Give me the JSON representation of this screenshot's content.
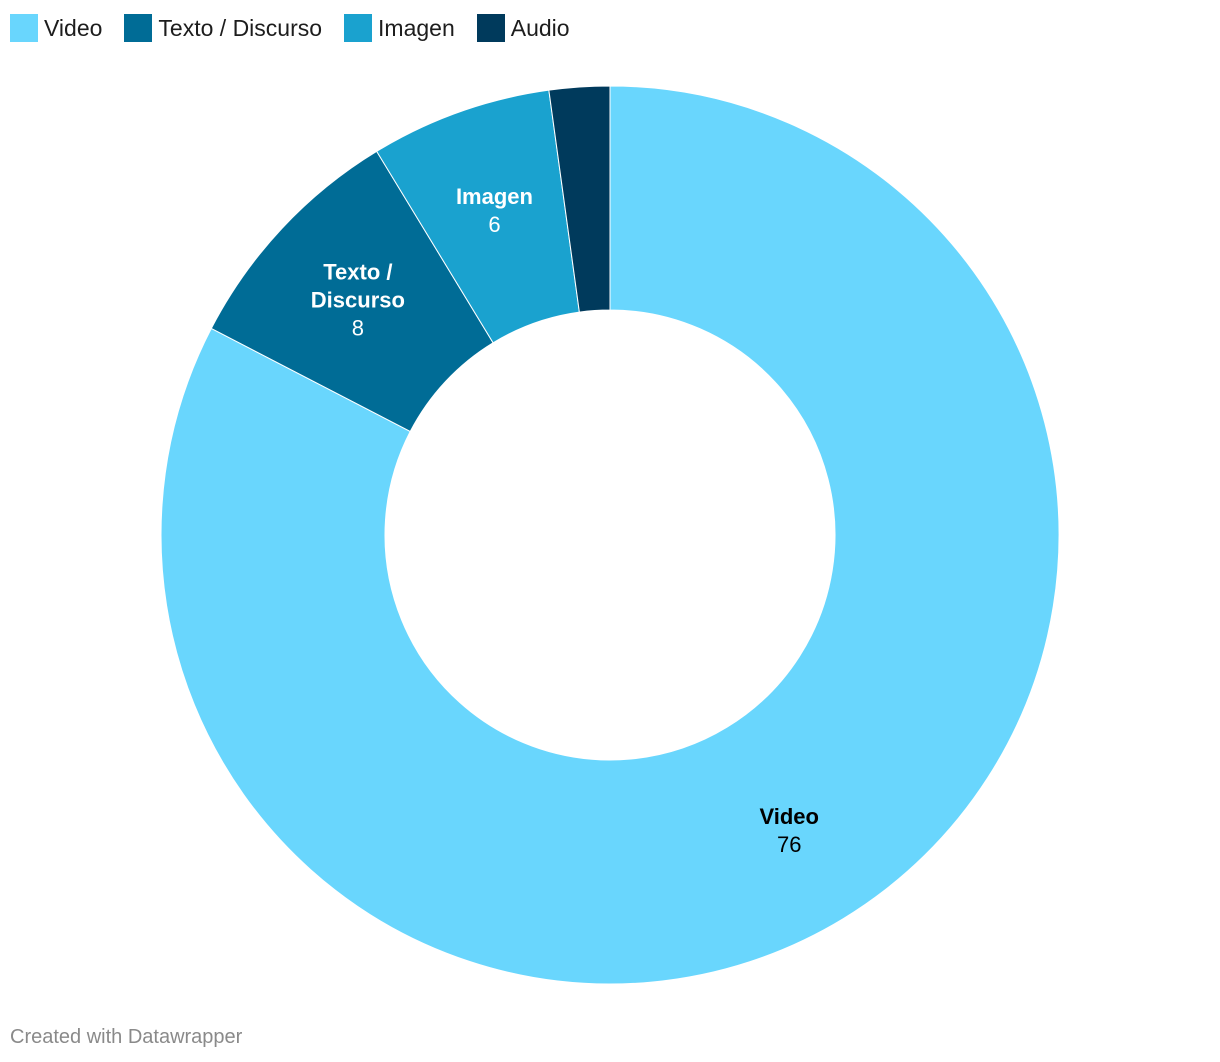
{
  "chart_data": {
    "type": "pie",
    "variant": "donut",
    "categories": [
      "Video",
      "Texto / Discurso",
      "Imagen",
      "Audio"
    ],
    "values": [
      76,
      8,
      6,
      2
    ],
    "colors": [
      "#69d6fd",
      "#006c96",
      "#1aa2cf",
      "#003a5c"
    ],
    "label_colors": [
      "#000000",
      "#ffffff",
      "#ffffff",
      "#ffffff"
    ],
    "slice_labels": [
      {
        "name_lines": [
          "Video"
        ],
        "value": "76",
        "shown": true
      },
      {
        "name_lines": [
          "Texto /",
          "Discurso"
        ],
        "value": "8",
        "shown": true
      },
      {
        "name_lines": [
          "Imagen"
        ],
        "value": "6",
        "shown": true
      },
      {
        "name_lines": [],
        "value": "",
        "shown": false
      }
    ],
    "legend": {
      "placement": "top-left",
      "items": [
        "Video",
        "Texto / Discurso",
        "Imagen",
        "Audio"
      ]
    },
    "start": "top",
    "direction": "clockwise"
  },
  "credit": "Created with Datawrapper"
}
